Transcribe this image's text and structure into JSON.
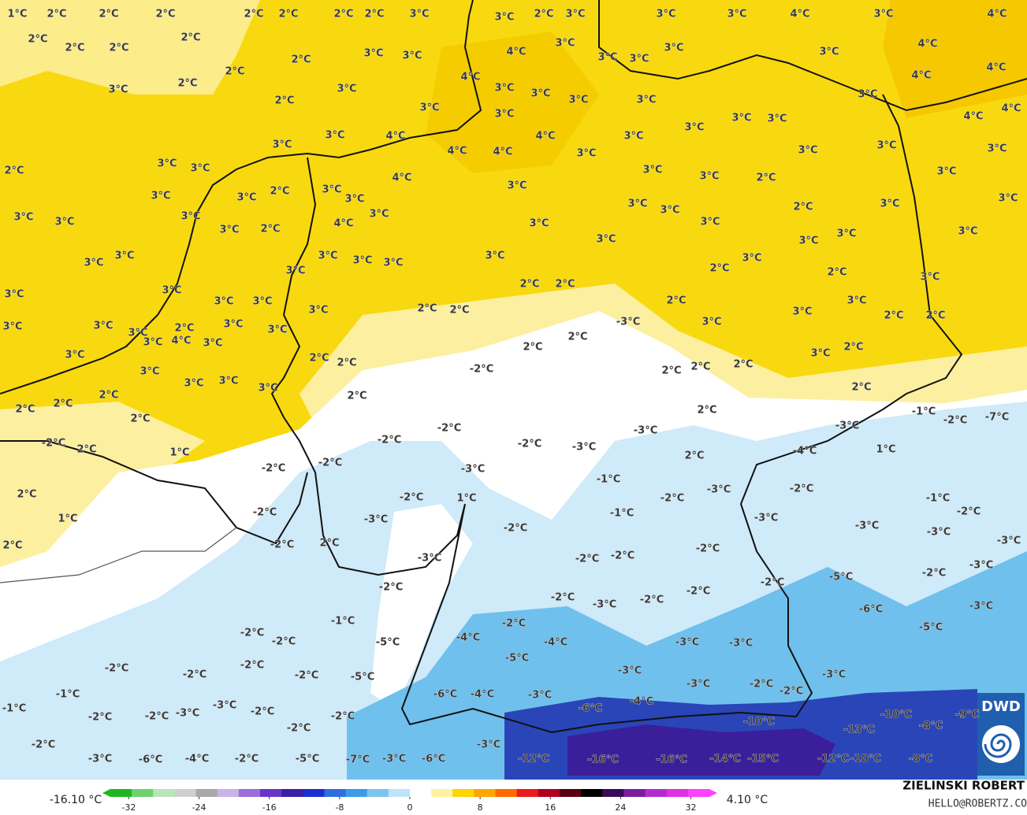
{
  "map": {
    "labels": [
      "1°C",
      "2°C",
      "2°C",
      "2°C",
      "2°C",
      "2°C",
      "2°C",
      "2°C",
      "3°C",
      "3°C",
      "2°C",
      "3°C",
      "3°C",
      "3°C",
      "4°C",
      "3°C",
      "4°C",
      "2°C",
      "2°C",
      "2°C",
      "2°C",
      "3°C",
      "3°C",
      "2°C",
      "3°C",
      "4°C",
      "3°C",
      "3°C",
      "3°C",
      "4°C",
      "4°C",
      "3°C",
      "4°C",
      "2°C",
      "2°C",
      "3°C",
      "3°C",
      "2°C",
      "4°C",
      "3°C",
      "3°C",
      "3°C",
      "3°C",
      "3°C",
      "3°C",
      "3°C",
      "3°C",
      "3°C",
      "4°C",
      "4°C",
      "3°C",
      "4°C",
      "3°C",
      "4°C",
      "4°C",
      "4°C",
      "3°C",
      "3°C",
      "3°C",
      "3°C",
      "3°C",
      "3°C",
      "2°C",
      "3°C",
      "3°C",
      "4°C",
      "3°C",
      "3°C",
      "2°C",
      "3°C",
      "3°C",
      "2°C",
      "3°C",
      "3°C",
      "3°C",
      "3°C",
      "3°C",
      "3°C",
      "2°C",
      "3°C",
      "3°C",
      "3°C",
      "3°C",
      "3°C",
      "3°C",
      "3°C",
      "3°C",
      "3°C",
      "2°C",
      "4°C",
      "3°C",
      "3°C",
      "3°C",
      "3°C",
      "3°C",
      "3°C",
      "3°C",
      "3°C",
      "3°C",
      "3°C",
      "3°C",
      "3°C",
      "2°C",
      "2°C",
      "2°C",
      "2°C",
      "3°C",
      "3°C",
      "3°C",
      "3°C",
      "3°C",
      "2°C",
      "3°C",
      "3°C",
      "2°C",
      "2°C",
      "3°C",
      "3°C",
      "3°C",
      "2°C",
      "3°C",
      "3°C",
      "-3°C",
      "3°C",
      "3°C",
      "2°C",
      "2°C",
      "4°C",
      "3°C",
      "3°C",
      "2°C",
      "2°C",
      "3°C",
      "2°C",
      "3°C",
      "2°C",
      "2°C",
      "3°C",
      "2°C",
      "2°C",
      "2°C",
      "-2°C",
      "3°C",
      "3°C",
      "3°C",
      "2°C",
      "2°C",
      "2°C",
      "2°C",
      "2°C",
      "2°C",
      "-1°C",
      "2°C",
      "-2°C",
      "-3°C",
      "-3°C",
      "-2°C",
      "-7°C",
      "-2°C",
      "-2°C",
      "2°C",
      "-2°C",
      "-3°C",
      "2°C",
      "-4°C",
      "1°C",
      "1°C",
      "-2°C",
      "-3°C",
      "-2°C",
      "-1°C",
      "-3°C",
      "2°C",
      "-2°C",
      "1°C",
      "-2°C",
      "-2°C",
      "-1°C",
      "1°C",
      "-2°C",
      "-3°C",
      "-1°C",
      "-3°C",
      "-2°C",
      "-2°C",
      "-3°C",
      "2°C",
      "-2°C",
      "2°C",
      "-2°C",
      "-3°C",
      "-3°C",
      "-3°C",
      "-2°C",
      "-2°C",
      "-3°C",
      "-2°C",
      "-2°C",
      "-5°C",
      "-2°C",
      "-2°C",
      "-2°C",
      "-3°C",
      "-2°C",
      "-6°C",
      "-3°C",
      "-1°C",
      "-2°C",
      "-2°C",
      "-5°C",
      "-4°C",
      "-4°C",
      "-2°C",
      "-5°C",
      "-3°C",
      "-3°C",
      "-2°C",
      "-5°C",
      "-2°C",
      "-2°C",
      "-2°C",
      "-5°C",
      "-3°C",
      "-3°C",
      "-3°C",
      "-2°C",
      "-1°C",
      "-6°C",
      "-4°C",
      "-3°C",
      "-4°C",
      "-2°C",
      "-1°C",
      "-3°C",
      "-6°C",
      "-2°C",
      "-2°C",
      "-3°C",
      "-2°C",
      "-2°C",
      "-10°C",
      "-10°C",
      "-9°C",
      "-8°C",
      "-13°C",
      "-2°C",
      "-2°C",
      "-3°C",
      "-3°C",
      "-6°C",
      "-4°C",
      "-2°C",
      "-5°C",
      "-7°C",
      "-3°C",
      "-6°C",
      "-12°C",
      "-16°C",
      "-16°C",
      "-14°C",
      "-15°C",
      "-12°C",
      "-10°C",
      "-8°C"
    ]
  },
  "colorbar": {
    "min_label": "-16.10 °C",
    "max_label": "4.10 °C",
    "range": [
      -35,
      35
    ],
    "ticks": [
      -32,
      -24,
      -16,
      -8,
      0,
      8,
      16,
      24,
      32
    ],
    "colors": [
      "#22b522",
      "#6fd26f",
      "#b8e6b8",
      "#cfcfcf",
      "#a9a9a9",
      "#c9b3e6",
      "#9b6fd9",
      "#6a35c8",
      "#3b1fa8",
      "#1a2fd0",
      "#2f6de0",
      "#3d9ae8",
      "#7cc4f0",
      "#bfe3f8",
      "#ffffff",
      "#fff3a0",
      "#ffd400",
      "#ffa500",
      "#ff6a00",
      "#e81c1c",
      "#b00020",
      "#5a0010",
      "#000000",
      "#3a0a5a",
      "#7a1ea0",
      "#b42ad0",
      "#e030e0",
      "#ff40ff"
    ]
  },
  "credit": {
    "name": "ZIELINSKI ROBERT",
    "email": "HELLO@ROBERTZ.CO"
  },
  "logo": "DWD"
}
